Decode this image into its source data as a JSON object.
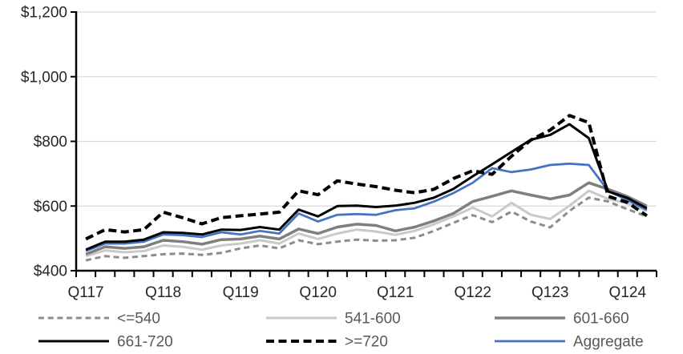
{
  "chart_data": {
    "type": "line",
    "title": "",
    "xlabel": "",
    "ylabel": "",
    "ylim": [
      400,
      1200
    ],
    "grid": "horizontal",
    "legend_position": "bottom",
    "categories": [
      "2017Q1",
      "2017Q2",
      "2017Q3",
      "2017Q4",
      "2018Q1",
      "2018Q2",
      "2018Q3",
      "2018Q4",
      "2019Q1",
      "2019Q2",
      "2019Q3",
      "2019Q4",
      "2020Q1",
      "2020Q2",
      "2020Q3",
      "2020Q4",
      "2021Q1",
      "2021Q2",
      "2021Q3",
      "2021Q4",
      "2022Q1",
      "2022Q2",
      "2022Q3",
      "2022Q4",
      "2023Q1",
      "2023Q2",
      "2023Q3",
      "2023Q4",
      "2024Q1",
      "2024Q2"
    ],
    "x_tick_indices": [
      0,
      4,
      8,
      12,
      16,
      20,
      24,
      28
    ],
    "x_tick_labels": [
      "Q117",
      "Q118",
      "Q119",
      "Q120",
      "Q121",
      "Q122",
      "Q123",
      "Q124"
    ],
    "y_ticks": [
      {
        "value": 400,
        "label": "$400"
      },
      {
        "value": 600,
        "label": "$600"
      },
      {
        "value": 800,
        "label": "$800"
      },
      {
        "value": 1000,
        "label": "$1,000"
      },
      {
        "value": 1200,
        "label": "$1,200"
      }
    ],
    "series": [
      {
        "key": "le540",
        "name": "<=540",
        "color": "#8C8C8C",
        "line_style": "dashed",
        "values": [
          432,
          445,
          440,
          445,
          451,
          453,
          449,
          455,
          469,
          478,
          469,
          494,
          482,
          490,
          496,
          493,
          494,
          502,
          523,
          548,
          572,
          550,
          583,
          552,
          534,
          585,
          626,
          614,
          590,
          568
        ]
      },
      {
        "key": "s541_600",
        "name": "541-600",
        "color": "#C9C9C9",
        "line_style": "solid",
        "values": [
          445,
          463,
          457,
          461,
          478,
          474,
          465,
          478,
          484,
          494,
          484,
          515,
          498,
          515,
          527,
          521,
          511,
          523,
          544,
          568,
          595,
          568,
          610,
          573,
          560,
          601,
          647,
          622,
          608,
          585
        ]
      },
      {
        "key": "s601_660",
        "name": "601-660",
        "color": "#7F7F7F",
        "line_style": "solid",
        "values": [
          451,
          474,
          469,
          474,
          494,
          490,
          482,
          496,
          498,
          507,
          498,
          529,
          515,
          535,
          544,
          540,
          523,
          535,
          554,
          577,
          614,
          630,
          647,
          634,
          622,
          634,
          672,
          652,
          629,
          600
        ]
      },
      {
        "key": "s661_720",
        "name": "661-720",
        "color": "#000000",
        "line_style": "solid",
        "values": [
          465,
          490,
          490,
          496,
          519,
          517,
          512,
          527,
          526,
          535,
          527,
          589,
          568,
          600,
          601,
          597,
          601,
          610,
          626,
          653,
          692,
          729,
          767,
          805,
          820,
          853,
          810,
          645,
          625,
          593
        ]
      },
      {
        "key": "ge720",
        "name": ">=720",
        "color": "#000000",
        "line_style": "dashed",
        "values": [
          498,
          527,
          520,
          527,
          581,
          564,
          545,
          564,
          570,
          575,
          581,
          647,
          635,
          678,
          668,
          660,
          649,
          641,
          652,
          685,
          709,
          698,
          754,
          804,
          835,
          880,
          858,
          630,
          611,
          570
        ]
      },
      {
        "key": "aggregate",
        "name": "Aggregate",
        "color": "#4472C4",
        "line_style": "solid",
        "values": [
          461,
          484,
          484,
          490,
          512,
          510,
          504,
          519,
          512,
          523,
          515,
          577,
          552,
          573,
          575,
          573,
          587,
          593,
          614,
          640,
          672,
          717,
          705,
          713,
          727,
          731,
          727,
          647,
          618,
          588
        ]
      }
    ],
    "legend_rows": [
      [
        "<=540",
        "541-600",
        "601-660"
      ],
      [
        "661-720",
        ">=720",
        "Aggregate"
      ]
    ]
  },
  "colors": {
    "background": "#FFFFFF",
    "axis": "#000000",
    "gridline": "#D9D9D9",
    "tick_label": "#262626",
    "legend_text": "#595959",
    "accent_blue": "#4472C4"
  }
}
